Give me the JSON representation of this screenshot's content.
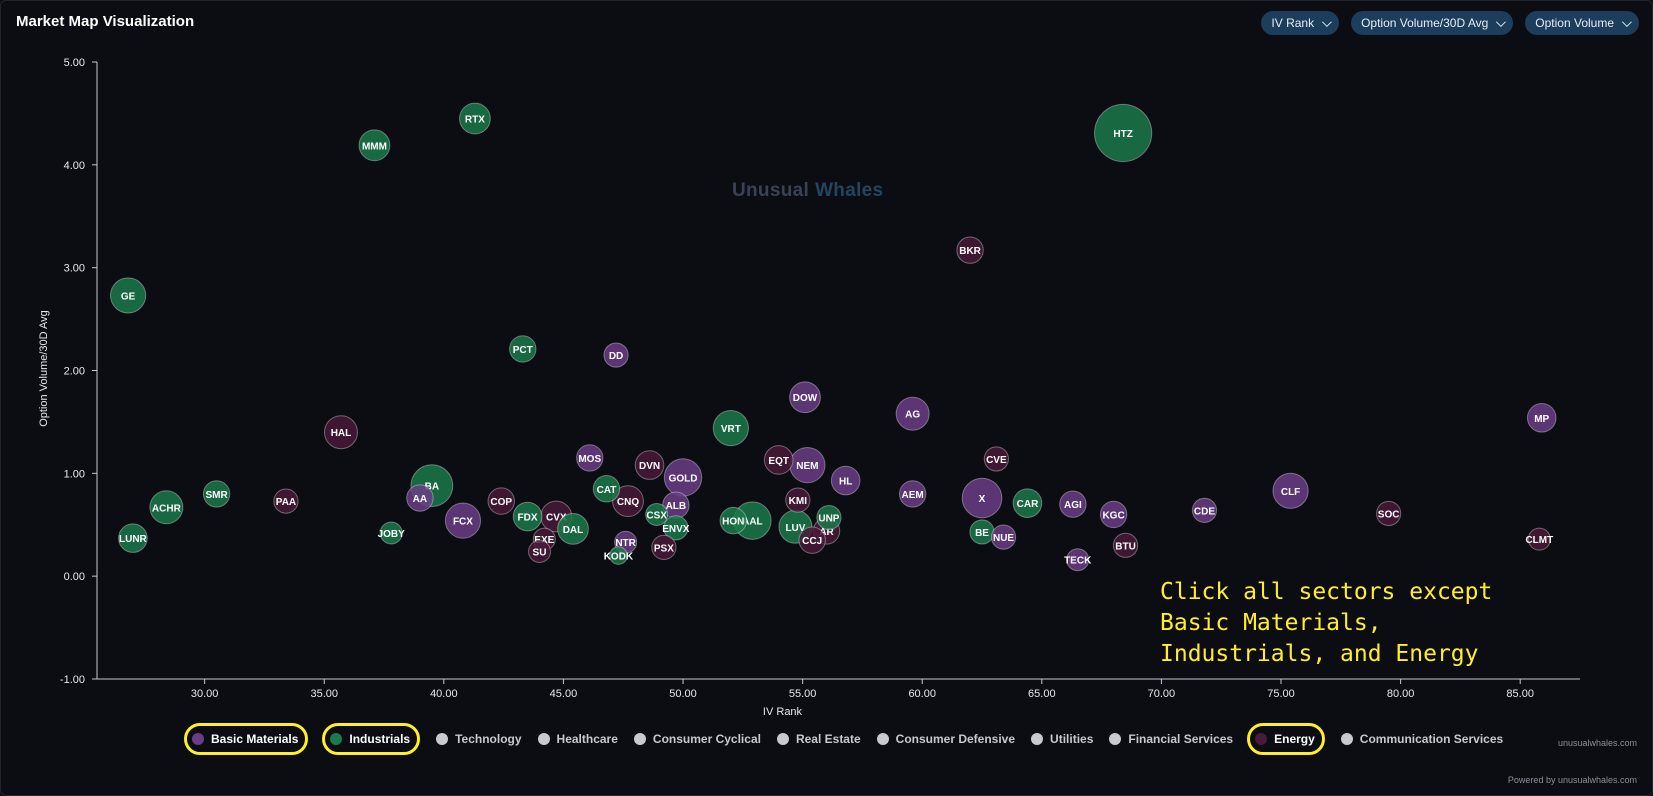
{
  "header": {
    "title": "Market Map Visualization",
    "dropdowns": [
      {
        "label": "IV Rank"
      },
      {
        "label": "Option Volume/30D Avg"
      },
      {
        "label": "Option Volume"
      }
    ]
  },
  "watermark": {
    "part1": "Unusual",
    "part2": "Whales"
  },
  "instruction": "Click all sectors except\nBasic Materials,\nIndustrials, and Energy",
  "legend": [
    {
      "label": "Basic Materials",
      "color": "#6b3d87",
      "active": true,
      "highlighted": true
    },
    {
      "label": "Industrials",
      "color": "#1b7a4a",
      "active": true,
      "highlighted": true
    },
    {
      "label": "Technology",
      "color": "#c9c9cf",
      "active": false,
      "highlighted": false
    },
    {
      "label": "Healthcare",
      "color": "#c9c9cf",
      "active": false,
      "highlighted": false
    },
    {
      "label": "Consumer Cyclical",
      "color": "#c9c9cf",
      "active": false,
      "highlighted": false
    },
    {
      "label": "Real Estate",
      "color": "#c9c9cf",
      "active": false,
      "highlighted": false
    },
    {
      "label": "Consumer Defensive",
      "color": "#c9c9cf",
      "active": false,
      "highlighted": false
    },
    {
      "label": "Utilities",
      "color": "#c9c9cf",
      "active": false,
      "highlighted": false
    },
    {
      "label": "Financial Services",
      "color": "#c9c9cf",
      "active": false,
      "highlighted": false
    },
    {
      "label": "Energy",
      "color": "#4a1a3a",
      "active": true,
      "highlighted": true
    },
    {
      "label": "Communication Services",
      "color": "#c9c9cf",
      "active": false,
      "highlighted": false
    }
  ],
  "footer": {
    "site": "unusualwhales.com",
    "powered": "Powered by unusualwhales.com"
  },
  "chart_data": {
    "type": "scatter",
    "xlabel": "IV Rank",
    "ylabel": "Option Volume/30D Avg",
    "xlim": [
      25.5,
      87.5
    ],
    "ylim": [
      -1.0,
      5.0
    ],
    "xticks": [
      30,
      35,
      40,
      45,
      50,
      55,
      60,
      65,
      70,
      75,
      80,
      85
    ],
    "yticks": [
      -1,
      0,
      1,
      2,
      3,
      4,
      5
    ],
    "tick_format": 2,
    "sector_colors": {
      "Basic Materials": "#6b3d87",
      "Industrials": "#1b7a4a",
      "Energy": "#4a1a3a"
    },
    "points": [
      {
        "label": "GE",
        "x": 26.8,
        "y": 2.73,
        "sector": "Industrials",
        "size": 1.6
      },
      {
        "label": "MMM",
        "x": 37.1,
        "y": 4.19,
        "sector": "Industrials",
        "size": 1.4
      },
      {
        "label": "RTX",
        "x": 41.3,
        "y": 4.45,
        "sector": "Industrials",
        "size": 1.4
      },
      {
        "label": "HTZ",
        "x": 68.4,
        "y": 4.31,
        "sector": "Industrials",
        "size": 2.6
      },
      {
        "label": "BKR",
        "x": 62.0,
        "y": 3.17,
        "sector": "Energy",
        "size": 1.2
      },
      {
        "label": "PCT",
        "x": 43.3,
        "y": 2.21,
        "sector": "Industrials",
        "size": 1.2
      },
      {
        "label": "DD",
        "x": 47.2,
        "y": 2.15,
        "sector": "Basic Materials",
        "size": 1.1
      },
      {
        "label": "DOW",
        "x": 55.1,
        "y": 1.74,
        "sector": "Basic Materials",
        "size": 1.4
      },
      {
        "label": "AG",
        "x": 59.6,
        "y": 1.58,
        "sector": "Basic Materials",
        "size": 1.5
      },
      {
        "label": "MP",
        "x": 85.9,
        "y": 1.54,
        "sector": "Basic Materials",
        "size": 1.3
      },
      {
        "label": "HAL",
        "x": 35.7,
        "y": 1.4,
        "sector": "Energy",
        "size": 1.5
      },
      {
        "label": "VRT",
        "x": 52.0,
        "y": 1.44,
        "sector": "Industrials",
        "size": 1.6
      },
      {
        "label": "MOS",
        "x": 46.1,
        "y": 1.15,
        "sector": "Basic Materials",
        "size": 1.2
      },
      {
        "label": "DVN",
        "x": 48.6,
        "y": 1.08,
        "sector": "Energy",
        "size": 1.3
      },
      {
        "label": "EQT",
        "x": 54.0,
        "y": 1.13,
        "sector": "Energy",
        "size": 1.3
      },
      {
        "label": "NEM",
        "x": 55.2,
        "y": 1.08,
        "sector": "Basic Materials",
        "size": 1.6
      },
      {
        "label": "CVE",
        "x": 63.1,
        "y": 1.14,
        "sector": "Energy",
        "size": 1.1
      },
      {
        "label": "GOLD",
        "x": 50.0,
        "y": 0.96,
        "sector": "Basic Materials",
        "size": 1.7
      },
      {
        "label": "HL",
        "x": 56.8,
        "y": 0.93,
        "sector": "Basic Materials",
        "size": 1.3
      },
      {
        "label": "BA",
        "x": 39.5,
        "y": 0.88,
        "sector": "Industrials",
        "size": 1.9
      },
      {
        "label": "SMR",
        "x": 30.5,
        "y": 0.8,
        "sector": "Industrials",
        "size": 1.2
      },
      {
        "label": "AEM",
        "x": 59.6,
        "y": 0.8,
        "sector": "Basic Materials",
        "size": 1.2
      },
      {
        "label": "CLF",
        "x": 75.4,
        "y": 0.83,
        "sector": "Basic Materials",
        "size": 1.6
      },
      {
        "label": "CAT",
        "x": 46.8,
        "y": 0.85,
        "sector": "Industrials",
        "size": 1.2
      },
      {
        "label": "PAA",
        "x": 33.4,
        "y": 0.73,
        "sector": "Energy",
        "size": 1.1
      },
      {
        "label": "AA",
        "x": 39.0,
        "y": 0.76,
        "sector": "Basic Materials",
        "size": 1.2
      },
      {
        "label": "COP",
        "x": 42.4,
        "y": 0.73,
        "sector": "Energy",
        "size": 1.2
      },
      {
        "label": "CNQ",
        "x": 47.7,
        "y": 0.73,
        "sector": "Energy",
        "size": 1.4
      },
      {
        "label": "KMI",
        "x": 54.8,
        "y": 0.74,
        "sector": "Energy",
        "size": 1.1
      },
      {
        "label": "X",
        "x": 62.5,
        "y": 0.76,
        "sector": "Basic Materials",
        "size": 1.8
      },
      {
        "label": "CAR",
        "x": 64.4,
        "y": 0.71,
        "sector": "Industrials",
        "size": 1.3
      },
      {
        "label": "AGI",
        "x": 66.3,
        "y": 0.7,
        "sector": "Basic Materials",
        "size": 1.2
      },
      {
        "label": "ACHR",
        "x": 28.4,
        "y": 0.67,
        "sector": "Industrials",
        "size": 1.5
      },
      {
        "label": "ALB",
        "x": 49.7,
        "y": 0.69,
        "sector": "Basic Materials",
        "size": 1.2
      },
      {
        "label": "CDE",
        "x": 71.8,
        "y": 0.64,
        "sector": "Basic Materials",
        "size": 1.1
      },
      {
        "label": "KGC",
        "x": 68.0,
        "y": 0.6,
        "sector": "Basic Materials",
        "size": 1.2
      },
      {
        "label": "SOC",
        "x": 79.5,
        "y": 0.61,
        "sector": "Energy",
        "size": 1.1
      },
      {
        "label": "CVX",
        "x": 44.7,
        "y": 0.58,
        "sector": "Energy",
        "size": 1.4
      },
      {
        "label": "FDX",
        "x": 43.5,
        "y": 0.58,
        "sector": "Industrials",
        "size": 1.3
      },
      {
        "label": "CSX",
        "x": 48.9,
        "y": 0.6,
        "sector": "Industrials",
        "size": 1.0
      },
      {
        "label": "UNP",
        "x": 56.1,
        "y": 0.57,
        "sector": "Industrials",
        "size": 1.1
      },
      {
        "label": "HON",
        "x": 52.1,
        "y": 0.54,
        "sector": "Industrials",
        "size": 1.2
      },
      {
        "label": "AAL",
        "x": 52.9,
        "y": 0.54,
        "sector": "Industrials",
        "size": 1.7
      },
      {
        "label": "FCX",
        "x": 40.8,
        "y": 0.54,
        "sector": "Basic Materials",
        "size": 1.6
      },
      {
        "label": "LUV",
        "x": 54.7,
        "y": 0.48,
        "sector": "Industrials",
        "size": 1.5
      },
      {
        "label": "ENVX",
        "x": 49.7,
        "y": 0.47,
        "sector": "Industrials",
        "size": 1.1
      },
      {
        "label": "DAL",
        "x": 45.4,
        "y": 0.46,
        "sector": "Industrials",
        "size": 1.4
      },
      {
        "label": "AR",
        "x": 56.0,
        "y": 0.44,
        "sector": "Energy",
        "size": 1.2
      },
      {
        "label": "BE",
        "x": 62.5,
        "y": 0.43,
        "sector": "Industrials",
        "size": 1.1
      },
      {
        "label": "JOBY",
        "x": 37.8,
        "y": 0.42,
        "sector": "Industrials",
        "size": 1.0
      },
      {
        "label": "NUE",
        "x": 63.4,
        "y": 0.38,
        "sector": "Basic Materials",
        "size": 1.1
      },
      {
        "label": "LUNR",
        "x": 27.0,
        "y": 0.37,
        "sector": "Industrials",
        "size": 1.3
      },
      {
        "label": "EXE",
        "x": 44.2,
        "y": 0.36,
        "sector": "Energy",
        "size": 1.0
      },
      {
        "label": "CCJ",
        "x": 55.4,
        "y": 0.35,
        "sector": "Energy",
        "size": 1.2
      },
      {
        "label": "CLMT",
        "x": 85.8,
        "y": 0.36,
        "sector": "Energy",
        "size": 1.0
      },
      {
        "label": "NTR",
        "x": 47.6,
        "y": 0.33,
        "sector": "Basic Materials",
        "size": 1.0
      },
      {
        "label": "BTU",
        "x": 68.5,
        "y": 0.3,
        "sector": "Energy",
        "size": 1.1
      },
      {
        "label": "PSX",
        "x": 49.2,
        "y": 0.28,
        "sector": "Energy",
        "size": 1.1
      },
      {
        "label": "SU",
        "x": 44.0,
        "y": 0.24,
        "sector": "Energy",
        "size": 1.0
      },
      {
        "label": "KODK",
        "x": 47.3,
        "y": 0.2,
        "sector": "Industrials",
        "size": 0.8
      },
      {
        "label": "TECK",
        "x": 66.5,
        "y": 0.16,
        "sector": "Basic Materials",
        "size": 1.0
      }
    ]
  }
}
